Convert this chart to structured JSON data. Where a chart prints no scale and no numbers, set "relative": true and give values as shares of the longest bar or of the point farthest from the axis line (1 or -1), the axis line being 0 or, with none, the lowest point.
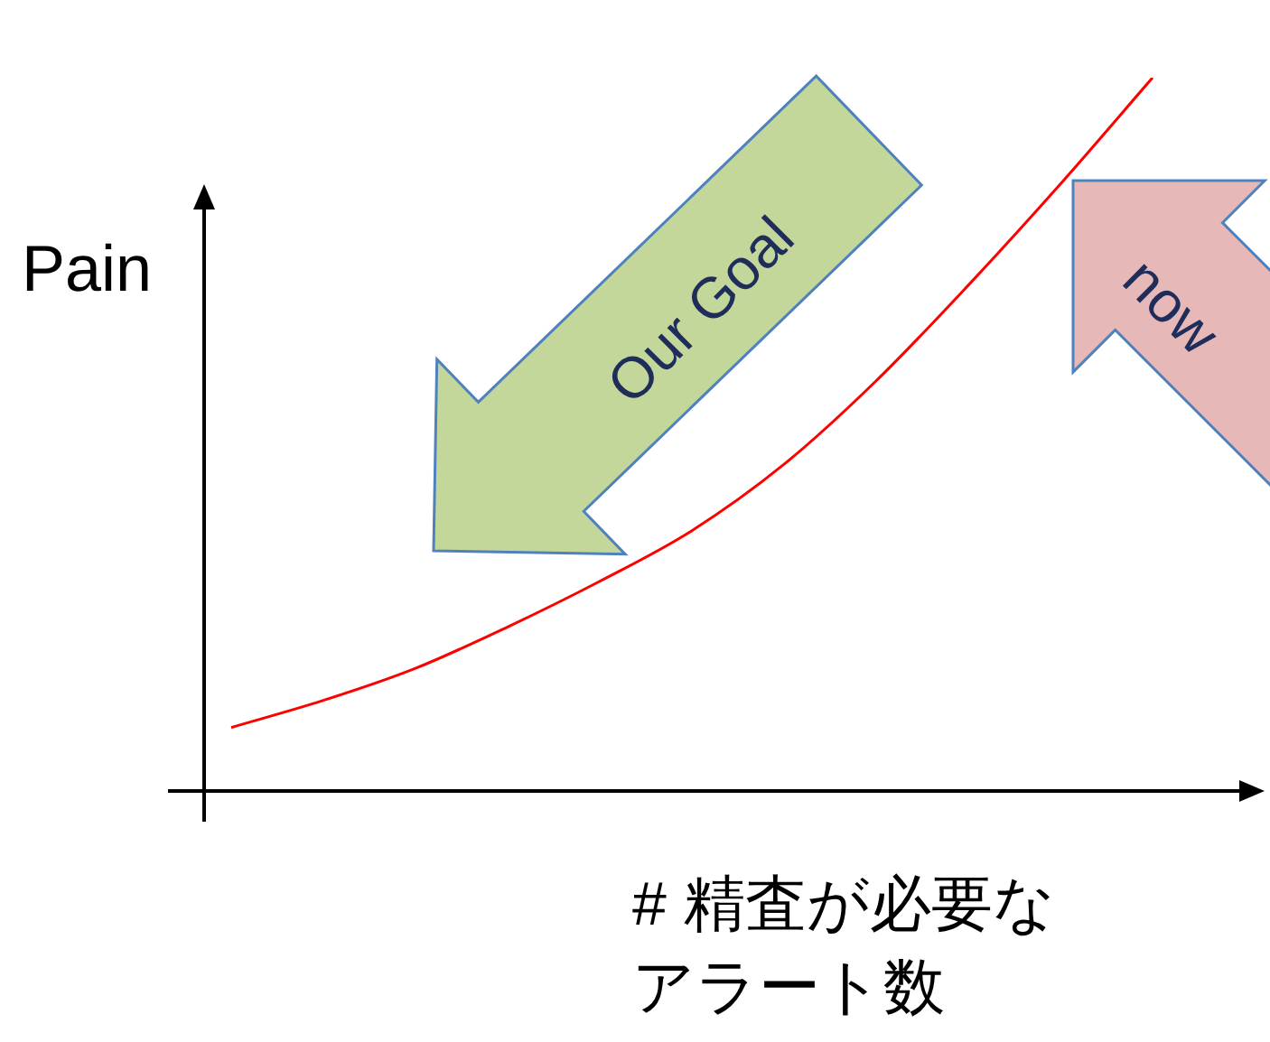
{
  "chart_data": {
    "type": "line",
    "ylabel": "Pain",
    "xlabel": "# 精査が必要なアラート数",
    "annotations": [
      "Our Goal",
      "now"
    ],
    "categories": [
      null,
      null,
      null,
      null,
      null,
      null,
      null,
      null,
      null,
      null,
      null
    ],
    "series": [
      {
        "color": "#ff0000",
        "values": [
          0.089,
          0.127,
          0.172,
          0.23,
          0.294,
          0.365,
          0.458,
          0.575,
          0.709,
          0.851,
          1
        ]
      }
    ],
    "relative": true,
    "marker": "none",
    "line_style": "solid"
  }
}
